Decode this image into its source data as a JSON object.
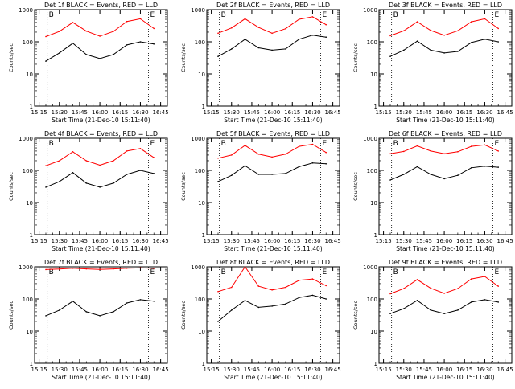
{
  "figure": {
    "tick_times": [
      "15:15",
      "15:30",
      "15:45",
      "16:00",
      "16:15",
      "16:30",
      "16:45"
    ],
    "y_ticks": [
      "1",
      "10",
      "100",
      "1000"
    ],
    "colors": {
      "events": "#000000",
      "lld": "#ff0000",
      "axes": "#000000",
      "background": "#ffffff"
    }
  },
  "chart_data": [
    {
      "type": "line",
      "title": "Det 1f BLACK = Events, RED = LLD",
      "xlabel": "Start Time (21-Dec-10 15:11:40)",
      "ylabel": "Counts/sec",
      "x_ticks": [
        "15:15",
        "15:30",
        "15:45",
        "16:00",
        "16:15",
        "16:30",
        "16:45"
      ],
      "y_ticks": [
        "1",
        "10",
        "100",
        "1000"
      ],
      "yscale": "log",
      "ylim": [
        1,
        1000
      ],
      "xlim": [
        "15:11:40",
        "16:50"
      ],
      "markers": [
        "B",
        "E"
      ],
      "marker_times": [
        "15:21",
        "16:36"
      ],
      "x": [
        "15:20",
        "15:30",
        "15:40",
        "15:50",
        "16:00",
        "16:10",
        "16:20",
        "16:30",
        "16:40"
      ],
      "series": [
        {
          "name": "LLD",
          "color": "#ff0000",
          "values": [
            145,
            210,
            400,
            215,
            150,
            210,
            430,
            520,
            260
          ]
        },
        {
          "name": "Events",
          "color": "#000000",
          "values": [
            25,
            45,
            90,
            40,
            30,
            40,
            80,
            100,
            85
          ]
        }
      ]
    },
    {
      "type": "line",
      "title": "Det 2f BLACK = Events, RED = LLD",
      "xlabel": "Start Time (21-Dec-10 15:11:40)",
      "ylabel": "Counts/sec",
      "x_ticks": [
        "15:15",
        "15:30",
        "15:45",
        "16:00",
        "16:15",
        "16:30",
        "16:45"
      ],
      "y_ticks": [
        "1",
        "10",
        "100",
        "1000"
      ],
      "yscale": "log",
      "ylim": [
        1,
        1000
      ],
      "xlim": [
        "15:11:40",
        "16:50"
      ],
      "markers": [
        "B",
        "E"
      ],
      "marker_times": [
        "15:21",
        "16:36"
      ],
      "x": [
        "15:20",
        "15:30",
        "15:40",
        "15:50",
        "16:00",
        "16:10",
        "16:20",
        "16:30",
        "16:40"
      ],
      "series": [
        {
          "name": "LLD",
          "color": "#ff0000",
          "values": [
            185,
            270,
            520,
            280,
            185,
            255,
            500,
            600,
            340
          ]
        },
        {
          "name": "Events",
          "color": "#000000",
          "values": [
            35,
            60,
            120,
            65,
            55,
            60,
            120,
            160,
            140
          ]
        }
      ]
    },
    {
      "type": "line",
      "title": "Det 3f BLACK = Events, RED = LLD",
      "xlabel": "Start Time (21-Dec-10 15:11:40)",
      "ylabel": "Counts/sec",
      "x_ticks": [
        "15:15",
        "15:30",
        "15:45",
        "16:00",
        "16:15",
        "16:30",
        "16:45"
      ],
      "y_ticks": [
        "1",
        "10",
        "100",
        "1000"
      ],
      "yscale": "log",
      "ylim": [
        1,
        1000
      ],
      "xlim": [
        "15:11:40",
        "16:50"
      ],
      "markers": [
        "B",
        "E"
      ],
      "marker_times": [
        "15:21",
        "16:36"
      ],
      "x": [
        "15:20",
        "15:30",
        "15:40",
        "15:50",
        "16:00",
        "16:10",
        "16:20",
        "16:30",
        "16:40"
      ],
      "series": [
        {
          "name": "LLD",
          "color": "#ff0000",
          "values": [
            155,
            220,
            420,
            225,
            160,
            220,
            420,
            520,
            260
          ]
        },
        {
          "name": "Events",
          "color": "#000000",
          "values": [
            35,
            55,
            105,
            55,
            45,
            50,
            95,
            120,
            100
          ]
        }
      ]
    },
    {
      "type": "line",
      "title": "Det 4f BLACK = Events, RED = LLD",
      "xlabel": "Start Time (21-Dec-10 15:11:40)",
      "ylabel": "Counts/sec",
      "x_ticks": [
        "15:15",
        "15:30",
        "15:45",
        "16:00",
        "16:15",
        "16:30",
        "16:45"
      ],
      "y_ticks": [
        "1",
        "10",
        "100",
        "1000"
      ],
      "yscale": "log",
      "ylim": [
        1,
        1000
      ],
      "xlim": [
        "15:11:40",
        "16:50"
      ],
      "markers": [
        "B",
        "E"
      ],
      "marker_times": [
        "15:21",
        "16:36"
      ],
      "x": [
        "15:20",
        "15:30",
        "15:40",
        "15:50",
        "16:00",
        "16:10",
        "16:20",
        "16:30",
        "16:40"
      ],
      "series": [
        {
          "name": "LLD",
          "color": "#ff0000",
          "values": [
            140,
            200,
            380,
            200,
            145,
            200,
            400,
            480,
            250
          ]
        },
        {
          "name": "Events",
          "color": "#000000",
          "values": [
            30,
            45,
            85,
            40,
            30,
            40,
            75,
            100,
            80
          ]
        }
      ]
    },
    {
      "type": "line",
      "title": "Det 5f BLACK = Events, RED = LLD",
      "xlabel": "Start Time (21-Dec-10 15:11:40)",
      "ylabel": "Counts/sec",
      "x_ticks": [
        "15:15",
        "15:30",
        "15:45",
        "16:00",
        "16:15",
        "16:30",
        "16:45"
      ],
      "y_ticks": [
        "1",
        "10",
        "100",
        "1000"
      ],
      "yscale": "log",
      "ylim": [
        1,
        1000
      ],
      "xlim": [
        "15:11:40",
        "16:50"
      ],
      "markers": [
        "B",
        "E"
      ],
      "marker_times": [
        "15:21",
        "16:36"
      ],
      "x": [
        "15:20",
        "15:30",
        "15:40",
        "15:50",
        "16:00",
        "16:10",
        "16:20",
        "16:30",
        "16:40"
      ],
      "series": [
        {
          "name": "LLD",
          "color": "#ff0000",
          "values": [
            240,
            300,
            600,
            320,
            260,
            320,
            560,
            650,
            360
          ]
        },
        {
          "name": "Events",
          "color": "#000000",
          "values": [
            45,
            70,
            140,
            75,
            75,
            80,
            130,
            170,
            160
          ]
        }
      ]
    },
    {
      "type": "line",
      "title": "Det 6f BLACK = Events, RED = LLD",
      "xlabel": "Start Time (21-Dec-10 15:11:40)",
      "ylabel": "Counts/sec",
      "x_ticks": [
        "15:15",
        "15:30",
        "15:45",
        "16:00",
        "16:15",
        "16:30",
        "16:45"
      ],
      "y_ticks": [
        "1",
        "10",
        "100",
        "1000"
      ],
      "yscale": "log",
      "ylim": [
        1,
        1000
      ],
      "xlim": [
        "15:11:40",
        "16:50"
      ],
      "markers": [
        "B",
        "E"
      ],
      "marker_times": [
        "15:21",
        "16:36"
      ],
      "x": [
        "15:20",
        "15:30",
        "15:40",
        "15:50",
        "16:00",
        "16:10",
        "16:20",
        "16:30",
        "16:40"
      ],
      "series": [
        {
          "name": "LLD",
          "color": "#ff0000",
          "values": [
            330,
            390,
            580,
            400,
            330,
            380,
            560,
            620,
            400
          ]
        },
        {
          "name": "Events",
          "color": "#000000",
          "values": [
            50,
            75,
            130,
            75,
            55,
            70,
            120,
            135,
            125
          ]
        }
      ]
    },
    {
      "type": "line",
      "title": "Det 7f BLACK = Events, RED = LLD",
      "xlabel": "Start Time (21-Dec-10 15:11:40)",
      "ylabel": "Counts/sec",
      "x_ticks": [
        "15:15",
        "15:30",
        "15:45",
        "16:00",
        "16:15",
        "16:30",
        "16:45"
      ],
      "y_ticks": [
        "1",
        "10",
        "100",
        "1000"
      ],
      "yscale": "log",
      "ylim": [
        1,
        1000
      ],
      "xlim": [
        "15:11:40",
        "16:50"
      ],
      "markers": [
        "B",
        "E"
      ],
      "marker_times": [
        "15:21",
        "16:36"
      ],
      "x": [
        "15:20",
        "15:30",
        "15:40",
        "15:50",
        "16:00",
        "16:10",
        "16:20",
        "16:30",
        "16:40"
      ],
      "series": [
        {
          "name": "LLD",
          "color": "#ff0000",
          "values": [
            820,
            850,
            900,
            860,
            830,
            860,
            900,
            920,
            900
          ]
        },
        {
          "name": "Events",
          "color": "#000000",
          "values": [
            30,
            45,
            85,
            40,
            30,
            40,
            75,
            95,
            85
          ]
        }
      ]
    },
    {
      "type": "line",
      "title": "Det 8f BLACK = Events, RED = LLD",
      "xlabel": "Start Time (21-Dec-10 15:11:40)",
      "ylabel": "Counts/sec",
      "x_ticks": [
        "15:15",
        "15:30",
        "15:45",
        "16:00",
        "16:15",
        "16:30",
        "16:45"
      ],
      "y_ticks": [
        "1",
        "10",
        "100",
        "1000"
      ],
      "yscale": "log",
      "ylim": [
        1,
        1000
      ],
      "xlim": [
        "15:11:40",
        "16:50"
      ],
      "markers": [
        "B",
        "E"
      ],
      "marker_times": [
        "15:21",
        "16:36"
      ],
      "x": [
        "15:20",
        "15:30",
        "15:40",
        "15:50",
        "16:00",
        "16:10",
        "16:20",
        "16:30",
        "16:40"
      ],
      "series": [
        {
          "name": "LLD",
          "color": "#ff0000",
          "values": [
            170,
            230,
            1000,
            250,
            190,
            230,
            380,
            420,
            260
          ]
        },
        {
          "name": "Events",
          "color": "#000000",
          "values": [
            20,
            45,
            90,
            55,
            60,
            70,
            110,
            130,
            100
          ]
        }
      ]
    },
    {
      "type": "line",
      "title": "Det 9f BLACK = Events, RED = LLD",
      "xlabel": "Start Time (21-Dec-10 15:11:40)",
      "ylabel": "Counts/sec",
      "x_ticks": [
        "15:15",
        "15:30",
        "15:45",
        "16:00",
        "16:15",
        "16:30",
        "16:45"
      ],
      "y_ticks": [
        "1",
        "10",
        "100",
        "1000"
      ],
      "yscale": "log",
      "ylim": [
        1,
        1000
      ],
      "xlim": [
        "15:11:40",
        "16:50"
      ],
      "markers": [
        "B",
        "E"
      ],
      "marker_times": [
        "15:21",
        "16:36"
      ],
      "x": [
        "15:20",
        "15:30",
        "15:40",
        "15:50",
        "16:00",
        "16:10",
        "16:20",
        "16:30",
        "16:40"
      ],
      "series": [
        {
          "name": "LLD",
          "color": "#ff0000",
          "values": [
            145,
            210,
            400,
            215,
            150,
            210,
            420,
            500,
            250
          ]
        },
        {
          "name": "Events",
          "color": "#000000",
          "values": [
            35,
            50,
            90,
            45,
            35,
            45,
            80,
            95,
            80
          ]
        }
      ]
    }
  ]
}
